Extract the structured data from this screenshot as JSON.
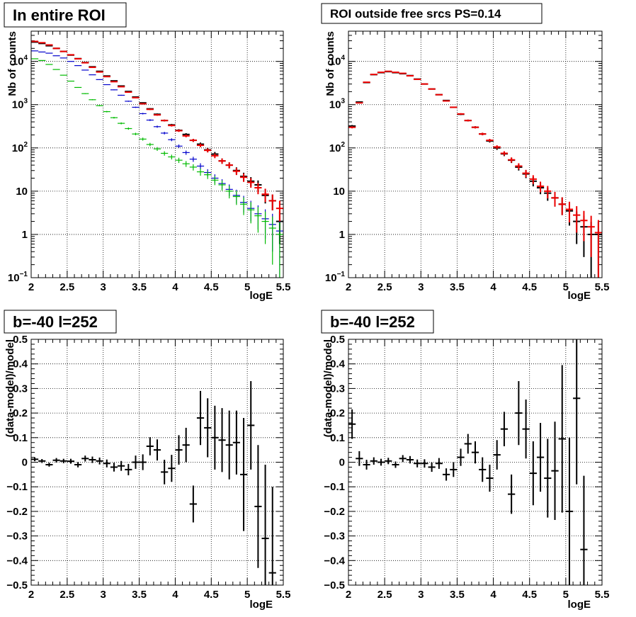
{
  "chart_data": [
    {
      "type": "scatter",
      "title": "In entire ROI",
      "xlabel": "logE",
      "ylabel": "Nb of counts",
      "xlim": [
        2,
        5.5
      ],
      "ylim": [
        0.1,
        50000
      ],
      "yscale": "log",
      "grid": true,
      "x_ticks": [
        "2",
        "2.5",
        "3",
        "3.5",
        "4",
        "4.5",
        "5",
        "5.5"
      ],
      "y_ticks": [
        {
          "value": 0.1,
          "base": "10",
          "exp": "−1"
        },
        {
          "value": 1,
          "label": "1"
        },
        {
          "value": 10,
          "label": "10"
        },
        {
          "value": 100,
          "base": "10",
          "exp": "2"
        },
        {
          "value": 1000,
          "base": "10",
          "exp": "3"
        },
        {
          "value": 10000,
          "base": "10",
          "exp": "4"
        }
      ],
      "x_step": 0.1,
      "series": [
        {
          "color": "#000000",
          "x": [
            2.05,
            2.15,
            2.25,
            2.35,
            2.45,
            2.55,
            2.65,
            2.75,
            2.85,
            2.95,
            3.05,
            3.15,
            3.25,
            3.35,
            3.45,
            3.55,
            3.65,
            3.75,
            3.85,
            3.95,
            4.05,
            4.15,
            4.25,
            4.35,
            4.45,
            4.55,
            4.65,
            4.75,
            4.85,
            4.95,
            5.05,
            5.15,
            5.25,
            5.35,
            5.45
          ],
          "y": [
            28000,
            26000,
            23000,
            20000,
            17000,
            14000,
            11600,
            9400,
            7500,
            5900,
            4600,
            3550,
            2700,
            2020,
            1500,
            1100,
            800,
            600,
            430,
            340,
            255,
            205,
            150,
            122,
            90,
            72,
            50,
            40,
            30,
            22,
            17,
            14,
            8,
            6,
            2
          ],
          "err": [
            170,
            160,
            150,
            140,
            130,
            120,
            108,
            97,
            87,
            77,
            68,
            60,
            52,
            45,
            39,
            33,
            28,
            25,
            21,
            19,
            16,
            14,
            12,
            11,
            10,
            8.5,
            7,
            6.3,
            5.5,
            4.7,
            4.1,
            3.7,
            2.8,
            2.4,
            1.4
          ]
        },
        {
          "color": "#0000cc",
          "x": [
            2.05,
            2.15,
            2.25,
            2.35,
            2.45,
            2.55,
            2.65,
            2.75,
            2.85,
            2.95,
            3.05,
            3.15,
            3.25,
            3.35,
            3.45,
            3.55,
            3.65,
            3.75,
            3.85,
            3.95,
            4.05,
            4.15,
            4.25,
            4.35,
            4.45,
            4.55,
            4.65,
            4.75,
            4.85,
            4.95,
            5.05,
            5.15,
            5.25,
            5.35,
            5.45
          ],
          "y": [
            17500,
            16500,
            15500,
            13500,
            12000,
            10000,
            8000,
            6300,
            4900,
            3800,
            2900,
            2200,
            1650,
            1200,
            870,
            620,
            440,
            310,
            220,
            155,
            110,
            78,
            55,
            38,
            27,
            20,
            15,
            11,
            8,
            5.5,
            4,
            3,
            2.3,
            1.7,
            1.2
          ],
          "err": [
            130,
            128,
            124,
            116,
            110,
            100,
            89,
            79,
            70,
            62,
            54,
            47,
            41,
            35,
            29,
            25,
            21,
            18,
            15,
            12,
            10,
            8.8,
            7.4,
            6.2,
            5.2,
            4.5,
            3.9,
            3.3,
            2.8,
            2.3,
            2,
            1.7,
            1.5,
            1.3,
            1.1
          ]
        },
        {
          "color": "#00bb00",
          "x": [
            2.05,
            2.15,
            2.25,
            2.35,
            2.45,
            2.55,
            2.65,
            2.75,
            2.85,
            2.95,
            3.05,
            3.15,
            3.25,
            3.35,
            3.45,
            3.55,
            3.65,
            3.75,
            3.85,
            3.95,
            4.05,
            4.15,
            4.25,
            4.35,
            4.45,
            4.55,
            4.65,
            4.75,
            4.85,
            4.95,
            5.05,
            5.15,
            5.25,
            5.35,
            5.45
          ],
          "y": [
            11500,
            10500,
            8500,
            6500,
            4800,
            3500,
            2500,
            1800,
            1300,
            950,
            690,
            500,
            370,
            280,
            210,
            160,
            120,
            95,
            75,
            62,
            52,
            43,
            36,
            28,
            24,
            18,
            14,
            10,
            7.5,
            5,
            3.7,
            2.7,
            2,
            1.4,
            1
          ],
          "err": [
            107,
            102,
            92,
            81,
            69,
            59,
            50,
            42,
            36,
            31,
            26,
            22,
            19,
            17,
            14,
            13,
            11,
            9.7,
            8.7,
            7.9,
            7.2,
            6.6,
            6,
            5.3,
            4.9,
            4.2,
            3.7,
            3.2,
            2.7,
            2.2,
            1.9,
            1.6,
            1.4,
            1.2,
            0.9
          ]
        },
        {
          "color": "#ee0000",
          "x": [
            2.05,
            2.15,
            2.25,
            2.35,
            2.45,
            2.55,
            2.65,
            2.75,
            2.85,
            2.95,
            3.05,
            3.15,
            3.25,
            3.35,
            3.45,
            3.55,
            3.65,
            3.75,
            3.85,
            3.95,
            4.05,
            4.15,
            4.25,
            4.35,
            4.45,
            4.55,
            4.65,
            4.75,
            4.85,
            4.95,
            5.05,
            5.15,
            5.25,
            5.35,
            5.45
          ],
          "y": [
            29000,
            27000,
            24000,
            20000,
            17000,
            14200,
            11500,
            9300,
            7300,
            5700,
            4450,
            3400,
            2600,
            1950,
            1450,
            1050,
            780,
            580,
            430,
            330,
            250,
            190,
            150,
            115,
            88,
            66,
            50,
            40,
            29,
            21,
            16,
            12,
            8.5,
            6,
            4
          ],
          "err": [
            170,
            165,
            155,
            141,
            130,
            119,
            107,
            96,
            85,
            75,
            67,
            58,
            51,
            44,
            38,
            32,
            28,
            24,
            21,
            18,
            16,
            14,
            12,
            11,
            9.4,
            8.1,
            7.1,
            6.3,
            5.4,
            4.6,
            4,
            3.5,
            2.9,
            2.4,
            2
          ]
        }
      ]
    },
    {
      "type": "scatter",
      "title": "ROI outside free srcs PS=0.14",
      "xlabel": "logE",
      "ylabel": "Nb of counts",
      "xlim": [
        2,
        5.5
      ],
      "ylim": [
        0.1,
        50000
      ],
      "yscale": "log",
      "grid": true,
      "x_ticks": [
        "2",
        "2.5",
        "3",
        "3.5",
        "4",
        "4.5",
        "5",
        "5.5"
      ],
      "y_ticks": [
        {
          "value": 0.1,
          "base": "10",
          "exp": "−1"
        },
        {
          "value": 1,
          "label": "1"
        },
        {
          "value": 10,
          "label": "10"
        },
        {
          "value": 100,
          "base": "10",
          "exp": "2"
        },
        {
          "value": 1000,
          "base": "10",
          "exp": "3"
        },
        {
          "value": 10000,
          "base": "10",
          "exp": "4"
        }
      ],
      "x_step": 0.1,
      "series": [
        {
          "color": "#000000",
          "x": [
            2.05,
            2.15,
            2.25,
            2.35,
            2.45,
            2.55,
            2.65,
            2.75,
            2.85,
            2.95,
            3.05,
            3.15,
            3.25,
            3.35,
            3.45,
            3.55,
            3.65,
            3.75,
            3.85,
            3.95,
            4.05,
            4.15,
            4.25,
            4.35,
            4.45,
            4.55,
            4.65,
            4.75,
            4.85,
            4.95,
            5.05,
            5.15,
            5.25,
            5.35,
            5.45
          ],
          "y": [
            320,
            1150,
            3250,
            4950,
            5500,
            5800,
            5500,
            5200,
            4700,
            3900,
            3000,
            2300,
            1700,
            1250,
            870,
            600,
            430,
            300,
            210,
            145,
            100,
            73,
            52,
            36,
            25,
            17,
            12,
            9,
            7,
            5,
            3.5,
            2,
            1.5,
            1,
            1
          ],
          "err": [
            18,
            34,
            57,
            70,
            74,
            76,
            74,
            72,
            69,
            62,
            55,
            48,
            41,
            35,
            29,
            24,
            21,
            17,
            14,
            12,
            10,
            8.5,
            7.2,
            6,
            5,
            4.1,
            3.5,
            3,
            2.6,
            2.2,
            1.9,
            1.4,
            1.2,
            0.95,
            0.95
          ]
        },
        {
          "color": "#ee0000",
          "x": [
            2.05,
            2.15,
            2.25,
            2.35,
            2.45,
            2.55,
            2.65,
            2.75,
            2.85,
            2.95,
            3.05,
            3.15,
            3.25,
            3.35,
            3.45,
            3.55,
            3.65,
            3.75,
            3.85,
            3.95,
            4.05,
            4.15,
            4.25,
            4.35,
            4.45,
            4.55,
            4.65,
            4.75,
            4.85,
            4.95,
            5.05,
            5.15,
            5.25,
            5.35,
            5.45
          ],
          "y": [
            300,
            1100,
            3300,
            5000,
            5600,
            5900,
            5600,
            5300,
            4650,
            3850,
            3000,
            2300,
            1700,
            1220,
            870,
            610,
            430,
            300,
            210,
            150,
            105,
            75,
            53,
            38,
            26,
            19,
            13,
            10,
            7,
            5,
            3.8,
            2.8,
            2.1,
            1.5,
            1.1
          ],
          "err": [
            17,
            33,
            57,
            71,
            75,
            77,
            75,
            73,
            68,
            62,
            55,
            48,
            41,
            35,
            29,
            25,
            21,
            17,
            14,
            12,
            10,
            8.7,
            7.3,
            6.2,
            5.1,
            4.4,
            3.6,
            3.2,
            2.6,
            2.2,
            1.9,
            1.7,
            1.4,
            1.2,
            1.05
          ]
        }
      ]
    },
    {
      "type": "scatter",
      "title": "b=-40 l=252",
      "xlabel": "logE",
      "ylabel": "(data-model)/model",
      "xlim": [
        2,
        5.5
      ],
      "ylim": [
        -0.5,
        0.5
      ],
      "grid": true,
      "x_ticks": [
        "2",
        "2.5",
        "3",
        "3.5",
        "4",
        "4.5",
        "5",
        "5.5"
      ],
      "y_ticks": [
        "−0.5",
        "−0.4",
        "−0.3",
        "−0.2",
        "−0.1",
        "0",
        "0.1",
        "0.2",
        "0.3",
        "0.4",
        "0.5"
      ],
      "x_step": 0.1,
      "series": [
        {
          "color": "#000000",
          "x": [
            2.05,
            2.15,
            2.25,
            2.35,
            2.45,
            2.55,
            2.65,
            2.75,
            2.85,
            2.95,
            3.05,
            3.15,
            3.25,
            3.35,
            3.45,
            3.55,
            3.65,
            3.75,
            3.85,
            3.95,
            4.05,
            4.15,
            4.25,
            4.35,
            4.45,
            4.55,
            4.65,
            4.75,
            4.85,
            4.95,
            5.05,
            5.15,
            5.25,
            5.35
          ],
          "y": [
            0.012,
            0.005,
            -0.01,
            0.008,
            0.005,
            0.004,
            -0.01,
            0.015,
            0.01,
            0.005,
            -0.005,
            -0.02,
            -0.015,
            -0.03,
            0.0,
            0.0,
            0.065,
            0.05,
            -0.04,
            -0.025,
            0.05,
            0.07,
            -0.17,
            0.18,
            0.14,
            0.1,
            0.09,
            0.07,
            0.08,
            -0.05,
            0.15,
            -0.18,
            -0.31,
            -0.45
          ],
          "err": [
            0.008,
            0.008,
            0.008,
            0.009,
            0.009,
            0.01,
            0.011,
            0.012,
            0.013,
            0.014,
            0.016,
            0.018,
            0.02,
            0.023,
            0.027,
            0.032,
            0.037,
            0.043,
            0.05,
            0.055,
            0.06,
            0.07,
            0.075,
            0.11,
            0.12,
            0.13,
            0.13,
            0.14,
            0.13,
            0.23,
            0.18,
            0.25,
            0.3,
            0.35
          ]
        }
      ]
    },
    {
      "type": "scatter",
      "title": "b=-40 l=252",
      "xlabel": "logE",
      "ylabel": "(data-model)/model",
      "xlim": [
        2,
        5.5
      ],
      "ylim": [
        -0.5,
        0.5
      ],
      "grid": true,
      "x_ticks": [
        "2",
        "2.5",
        "3",
        "3.5",
        "4",
        "4.5",
        "5",
        "5.5"
      ],
      "y_ticks": [
        "−0.5",
        "−0.4",
        "−0.3",
        "−0.2",
        "−0.1",
        "0",
        "0.1",
        "0.2",
        "0.3",
        "0.4",
        "0.5"
      ],
      "x_step": 0.1,
      "series": [
        {
          "color": "#000000",
          "x": [
            2.05,
            2.15,
            2.25,
            2.35,
            2.45,
            2.55,
            2.65,
            2.75,
            2.85,
            2.95,
            3.05,
            3.15,
            3.25,
            3.35,
            3.45,
            3.55,
            3.65,
            3.75,
            3.85,
            3.95,
            4.05,
            4.15,
            4.25,
            4.35,
            4.45,
            4.55,
            4.65,
            4.75,
            4.85,
            4.95,
            5.05,
            5.15,
            5.25
          ],
          "y": [
            0.155,
            0.015,
            -0.01,
            0.005,
            0.0,
            0.005,
            -0.01,
            0.015,
            0.01,
            -0.005,
            -0.005,
            -0.02,
            -0.005,
            -0.05,
            -0.03,
            0.02,
            0.075,
            0.04,
            -0.03,
            -0.065,
            0.03,
            0.135,
            -0.13,
            0.2,
            0.135,
            -0.045,
            0.02,
            -0.065,
            -0.035,
            0.095,
            -0.2,
            0.26,
            -0.355
          ],
          "err": [
            0.06,
            0.03,
            0.02,
            0.015,
            0.014,
            0.013,
            0.013,
            0.014,
            0.015,
            0.016,
            0.017,
            0.019,
            0.022,
            0.025,
            0.03,
            0.035,
            0.04,
            0.045,
            0.05,
            0.055,
            0.06,
            0.07,
            0.08,
            0.13,
            0.12,
            0.13,
            0.14,
            0.16,
            0.2,
            0.3,
            0.3,
            0.35,
            0.3
          ]
        }
      ]
    }
  ]
}
